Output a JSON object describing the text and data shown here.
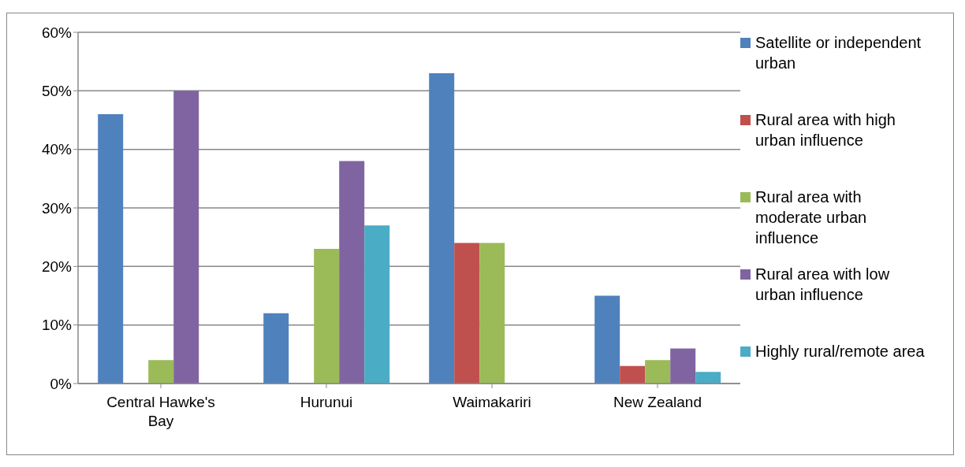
{
  "chart_data": {
    "type": "bar",
    "categories": [
      "Central Hawke's Bay",
      "Hurunui",
      "Waimakariri",
      "New Zealand"
    ],
    "series": [
      {
        "name": "Satellite or independent urban",
        "color": "#4f81bd",
        "values": [
          46,
          12,
          53,
          15
        ]
      },
      {
        "name": "Rural area with high urban influence",
        "color": "#c0504d",
        "values": [
          0,
          0,
          24,
          3
        ]
      },
      {
        "name": "Rural area with moderate urban influence",
        "color": "#9bbb59",
        "values": [
          4,
          23,
          24,
          4
        ]
      },
      {
        "name": "Rural area with low urban influence",
        "color": "#8064a2",
        "values": [
          50,
          38,
          0,
          6
        ]
      },
      {
        "name": "Highly rural/remote area",
        "color": "#4bacc6",
        "values": [
          0,
          27,
          0,
          2
        ]
      }
    ],
    "ylim": [
      0,
      60
    ],
    "yticks": [
      {
        "value": 0,
        "label": "0%"
      },
      {
        "value": 10,
        "label": "10%"
      },
      {
        "value": 20,
        "label": "20%"
      },
      {
        "value": 30,
        "label": "30%"
      },
      {
        "value": 40,
        "label": "40%"
      },
      {
        "value": 50,
        "label": "50%"
      },
      {
        "value": 60,
        "label": "60%"
      }
    ],
    "grid": "y",
    "legend": "right"
  }
}
